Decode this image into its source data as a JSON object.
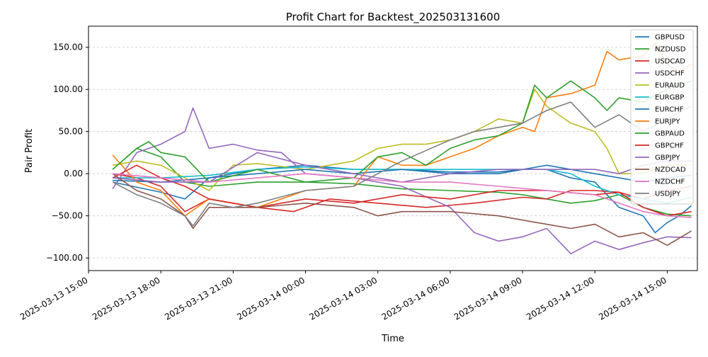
{
  "chart_data": {
    "type": "line",
    "title": "Profit Chart for Backtest_202503131600",
    "xlabel": "Time",
    "ylabel": "Pair Profit",
    "xlim": [
      "2025-03-13 15:00",
      "2025-03-14 16:15"
    ],
    "ylim": [
      -115,
      175
    ],
    "x_ticks": [
      "2025-03-13 15:00",
      "2025-03-13 18:00",
      "2025-03-13 21:00",
      "2025-03-14 00:00",
      "2025-03-14 03:00",
      "2025-03-14 06:00",
      "2025-03-14 09:00",
      "2025-03-14 12:00",
      "2025-03-14 15:00"
    ],
    "x_tick_labels": [
      "2025-03-13 15:00",
      "2025-03-13 18:00",
      "2025-03-13 21:00",
      "2025-03-14 00:00",
      "2025-03-14 03:00",
      "2025-03-14 06:00",
      "2025-03-14 09:00",
      "2025-03-14 12:00",
      "2025-03-14 15:00"
    ],
    "y_ticks": [
      -100,
      -50,
      0,
      50,
      100,
      150
    ],
    "y_tick_labels": [
      "−100.00",
      "−50.00",
      "0.00",
      "50.00",
      "100.00",
      "150.00"
    ],
    "grid": "horizontal dashed",
    "legend_position": "top-right",
    "series": [
      {
        "name": "GBPUSD",
        "color": "#1f77b4",
        "x": [
          "2025-03-13 16:00",
          "2025-03-13 18:00",
          "2025-03-13 19:00",
          "2025-03-13 20:00",
          "2025-03-13 22:00",
          "2025-03-14 00:00",
          "2025-03-14 02:00",
          "2025-03-14 04:00",
          "2025-03-14 06:00",
          "2025-03-14 08:00",
          "2025-03-14 09:00",
          "2025-03-14 10:00",
          "2025-03-14 11:00",
          "2025-03-14 12:00",
          "2025-03-14 13:00",
          "2025-03-14 14:00",
          "2025-03-14 14:30",
          "2025-03-14 15:00",
          "2025-03-14 15:30",
          "2025-03-14 16:00"
        ],
        "y": [
          -10,
          -22,
          -30,
          -5,
          5,
          10,
          5,
          5,
          2,
          2,
          5,
          5,
          -5,
          -10,
          -40,
          -50,
          -70,
          -58,
          -50,
          -38
        ]
      },
      {
        "name": "NZDUSD",
        "color": "#2ca02c",
        "x": [
          "2025-03-13 16:00",
          "2025-03-13 17:00",
          "2025-03-13 18:00",
          "2025-03-13 19:00",
          "2025-03-13 20:00",
          "2025-03-13 22:00",
          "2025-03-14 00:00",
          "2025-03-14 02:00",
          "2025-03-14 04:00",
          "2025-03-14 06:00",
          "2025-03-14 08:00",
          "2025-03-14 09:00",
          "2025-03-14 10:00",
          "2025-03-14 11:00",
          "2025-03-14 12:00",
          "2025-03-14 13:00",
          "2025-03-14 14:00",
          "2025-03-14 15:00",
          "2025-03-14 16:00"
        ],
        "y": [
          5,
          30,
          20,
          -10,
          -15,
          -10,
          -10,
          -12,
          -18,
          -20,
          -22,
          -25,
          -30,
          -35,
          -32,
          -25,
          -40,
          -48,
          -50
        ]
      },
      {
        "name": "USDCAD",
        "color": "#d62728",
        "x": [
          "2025-03-13 16:00",
          "2025-03-13 17:00",
          "2025-03-13 18:00",
          "2025-03-13 19:00",
          "2025-03-13 20:00",
          "2025-03-13 22:00",
          "2025-03-13 23:30",
          "2025-03-14 01:00",
          "2025-03-14 03:00",
          "2025-03-14 05:00",
          "2025-03-14 07:00",
          "2025-03-14 09:00",
          "2025-03-14 10:00",
          "2025-03-14 11:00",
          "2025-03-14 12:00",
          "2025-03-14 13:00",
          "2025-03-14 14:00",
          "2025-03-14 15:00",
          "2025-03-14 16:00"
        ],
        "y": [
          0,
          -5,
          -15,
          -45,
          -30,
          -40,
          -45,
          -30,
          -35,
          -40,
          -35,
          -28,
          -30,
          -20,
          -20,
          -22,
          -30,
          -20,
          -15
        ]
      },
      {
        "name": "USDCHF",
        "color": "#9467bd",
        "x": [
          "2025-03-13 16:00",
          "2025-03-13 17:00",
          "2025-03-13 18:00",
          "2025-03-13 19:00",
          "2025-03-13 19:20",
          "2025-03-13 20:00",
          "2025-03-13 21:00",
          "2025-03-13 22:00",
          "2025-03-13 23:00",
          "2025-03-14 00:00",
          "2025-03-14 02:00",
          "2025-03-14 04:00",
          "2025-03-14 06:00",
          "2025-03-14 07:00",
          "2025-03-14 08:00",
          "2025-03-14 09:00",
          "2025-03-14 10:00",
          "2025-03-14 11:00",
          "2025-03-14 12:00",
          "2025-03-14 13:00",
          "2025-03-14 14:00",
          "2025-03-14 15:00",
          "2025-03-14 16:00"
        ],
        "y": [
          -18,
          25,
          35,
          50,
          78,
          30,
          35,
          28,
          25,
          0,
          -5,
          -15,
          -40,
          -70,
          -80,
          -75,
          -65,
          -95,
          -80,
          -90,
          -82,
          -75,
          -76
        ]
      },
      {
        "name": "EURAUD",
        "color": "#bcbd22",
        "x": [
          "2025-03-13 16:00",
          "2025-03-13 17:00",
          "2025-03-13 18:00",
          "2025-03-13 19:00",
          "2025-03-13 20:00",
          "2025-03-13 21:00",
          "2025-03-13 22:00",
          "2025-03-14 00:00",
          "2025-03-14 02:00",
          "2025-03-14 03:00",
          "2025-03-14 04:00",
          "2025-03-14 05:00",
          "2025-03-14 06:00",
          "2025-03-14 07:00",
          "2025-03-14 08:00",
          "2025-03-14 09:00",
          "2025-03-14 09:30",
          "2025-03-14 10:00",
          "2025-03-14 11:00",
          "2025-03-14 12:00",
          "2025-03-14 12:30",
          "2025-03-14 13:00",
          "2025-03-14 14:00",
          "2025-03-14 15:00",
          "2025-03-14 16:00"
        ],
        "y": [
          10,
          15,
          10,
          -5,
          -20,
          10,
          12,
          5,
          15,
          30,
          35,
          35,
          40,
          50,
          65,
          60,
          100,
          80,
          60,
          50,
          30,
          0,
          0,
          10,
          10
        ]
      },
      {
        "name": "EURGBP",
        "color": "#17becf",
        "x": [
          "2025-03-13 16:00",
          "2025-03-13 18:00",
          "2025-03-13 20:00",
          "2025-03-13 22:00",
          "2025-03-14 00:00",
          "2025-03-14 02:00",
          "2025-03-14 04:00",
          "2025-03-14 06:00",
          "2025-03-14 08:00",
          "2025-03-14 10:00",
          "2025-03-14 11:00",
          "2025-03-14 12:00",
          "2025-03-14 13:00",
          "2025-03-14 14:00",
          "2025-03-14 15:00",
          "2025-03-14 16:00"
        ],
        "y": [
          -5,
          -5,
          -2,
          5,
          8,
          5,
          5,
          5,
          5,
          5,
          0,
          -15,
          -25,
          -30,
          -35,
          -28
        ]
      },
      {
        "name": "EURCHF",
        "color": "#1f77b4",
        "x": [
          "2025-03-13 16:00",
          "2025-03-13 18:00",
          "2025-03-13 20:00",
          "2025-03-13 22:00",
          "2025-03-14 00:00",
          "2025-03-14 02:00",
          "2025-03-14 04:00",
          "2025-03-14 06:00",
          "2025-03-14 08:00",
          "2025-03-14 10:00",
          "2025-03-14 11:00",
          "2025-03-14 12:00",
          "2025-03-14 13:00",
          "2025-03-14 14:00",
          "2025-03-14 15:00",
          "2025-03-14 16:00"
        ],
        "y": [
          -8,
          -10,
          -5,
          0,
          5,
          0,
          5,
          0,
          0,
          10,
          5,
          0,
          -5,
          -10,
          -5,
          -2
        ]
      },
      {
        "name": "EURJPY",
        "color": "#ff7f0e",
        "x": [
          "2025-03-13 16:00",
          "2025-03-13 17:00",
          "2025-03-13 18:00",
          "2025-03-13 19:00",
          "2025-03-13 20:00",
          "2025-03-13 21:00",
          "2025-03-13 22:00",
          "2025-03-14 00:00",
          "2025-03-14 02:00",
          "2025-03-14 03:00",
          "2025-03-14 04:00",
          "2025-03-14 05:00",
          "2025-03-14 06:00",
          "2025-03-14 07:00",
          "2025-03-14 08:00",
          "2025-03-14 09:00",
          "2025-03-14 09:30",
          "2025-03-14 10:00",
          "2025-03-14 11:00",
          "2025-03-14 12:00",
          "2025-03-14 12:30",
          "2025-03-14 13:00",
          "2025-03-14 14:00",
          "2025-03-14 14:30",
          "2025-03-14 15:00",
          "2025-03-14 15:30",
          "2025-03-14 16:00"
        ],
        "y": [
          22,
          -10,
          -20,
          -50,
          -30,
          -35,
          -40,
          -20,
          -15,
          20,
          10,
          10,
          20,
          30,
          45,
          55,
          50,
          90,
          95,
          105,
          145,
          135,
          140,
          155,
          130,
          120,
          130
        ]
      },
      {
        "name": "GBPAUD",
        "color": "#2ca02c",
        "x": [
          "2025-03-13 16:00",
          "2025-03-13 17:00",
          "2025-03-13 17:30",
          "2025-03-13 18:00",
          "2025-03-13 19:00",
          "2025-03-13 20:00",
          "2025-03-13 22:00",
          "2025-03-14 00:00",
          "2025-03-14 02:00",
          "2025-03-14 03:00",
          "2025-03-14 04:00",
          "2025-03-14 05:00",
          "2025-03-14 06:00",
          "2025-03-14 07:00",
          "2025-03-14 08:00",
          "2025-03-14 09:00",
          "2025-03-14 09:30",
          "2025-03-14 10:00",
          "2025-03-14 11:00",
          "2025-03-14 12:00",
          "2025-03-14 12:30",
          "2025-03-14 13:00",
          "2025-03-14 14:00",
          "2025-03-14 15:00",
          "2025-03-14 16:00"
        ],
        "y": [
          5,
          30,
          38,
          25,
          20,
          -10,
          5,
          -10,
          -5,
          20,
          25,
          10,
          30,
          40,
          45,
          60,
          105,
          90,
          110,
          90,
          75,
          90,
          85,
          100,
          110
        ]
      },
      {
        "name": "GBPCHF",
        "color": "#d62728",
        "x": [
          "2025-03-13 16:00",
          "2025-03-13 17:00",
          "2025-03-13 18:00",
          "2025-03-13 19:00",
          "2025-03-13 20:00",
          "2025-03-13 22:00",
          "2025-03-14 00:00",
          "2025-03-14 02:00",
          "2025-03-14 04:00",
          "2025-03-14 06:00",
          "2025-03-14 08:00",
          "2025-03-14 10:00",
          "2025-03-14 12:00",
          "2025-03-14 13:00",
          "2025-03-14 14:00",
          "2025-03-14 15:00",
          "2025-03-14 16:00"
        ],
        "y": [
          -5,
          10,
          -5,
          -15,
          -30,
          -40,
          -30,
          -35,
          -25,
          -30,
          -20,
          -20,
          -25,
          -22,
          -40,
          -50,
          -45
        ]
      },
      {
        "name": "GBPJPY",
        "color": "#9467bd",
        "x": [
          "2025-03-13 16:00",
          "2025-03-13 18:00",
          "2025-03-13 20:00",
          "2025-03-13 22:00",
          "2025-03-14 00:00",
          "2025-03-14 02:00",
          "2025-03-14 04:00",
          "2025-03-14 06:00",
          "2025-03-14 08:00",
          "2025-03-14 10:00",
          "2025-03-14 12:00",
          "2025-03-14 13:00",
          "2025-03-14 14:00",
          "2025-03-14 15:00",
          "2025-03-14 16:00"
        ],
        "y": [
          -5,
          -10,
          -10,
          25,
          10,
          0,
          -10,
          0,
          5,
          5,
          5,
          0,
          10,
          15,
          15
        ]
      },
      {
        "name": "NZDCAD",
        "color": "#8c564b",
        "x": [
          "2025-03-13 16:00",
          "2025-03-13 17:00",
          "2025-03-13 18:00",
          "2025-03-13 19:00",
          "2025-03-13 19:20",
          "2025-03-13 20:00",
          "2025-03-13 22:00",
          "2025-03-14 00:00",
          "2025-03-14 02:00",
          "2025-03-14 03:00",
          "2025-03-14 04:00",
          "2025-03-14 06:00",
          "2025-03-14 08:00",
          "2025-03-14 10:00",
          "2025-03-14 11:00",
          "2025-03-14 12:00",
          "2025-03-14 13:00",
          "2025-03-14 14:00",
          "2025-03-14 15:00",
          "2025-03-14 16:00"
        ],
        "y": [
          0,
          -20,
          -30,
          -50,
          -65,
          -40,
          -40,
          -35,
          -40,
          -50,
          -45,
          -45,
          -50,
          -60,
          -65,
          -60,
          -75,
          -70,
          -85,
          -68
        ]
      },
      {
        "name": "NZDCHF",
        "color": "#e377c2",
        "x": [
          "2025-03-13 16:00",
          "2025-03-13 18:00",
          "2025-03-13 20:00",
          "2025-03-13 22:00",
          "2025-03-14 00:00",
          "2025-03-14 02:00",
          "2025-03-14 04:00",
          "2025-03-14 06:00",
          "2025-03-14 08:00",
          "2025-03-14 10:00",
          "2025-03-14 12:00",
          "2025-03-14 13:00",
          "2025-03-14 14:00",
          "2025-03-14 15:00",
          "2025-03-14 16:00"
        ],
        "y": [
          0,
          -5,
          -10,
          -5,
          0,
          -5,
          -10,
          -10,
          -15,
          -20,
          -25,
          -35,
          -45,
          -50,
          -52
        ]
      },
      {
        "name": "USDJPY",
        "color": "#7f7f7f",
        "x": [
          "2025-03-13 16:00",
          "2025-03-13 17:00",
          "2025-03-13 18:00",
          "2025-03-13 19:00",
          "2025-03-13 19:20",
          "2025-03-13 20:00",
          "2025-03-13 21:00",
          "2025-03-13 22:00",
          "2025-03-14 00:00",
          "2025-03-14 02:00",
          "2025-03-14 04:00",
          "2025-03-14 06:00",
          "2025-03-14 07:00",
          "2025-03-14 08:00",
          "2025-03-14 09:00",
          "2025-03-14 10:00",
          "2025-03-14 11:00",
          "2025-03-14 12:00",
          "2025-03-14 13:00",
          "2025-03-14 14:00",
          "2025-03-14 15:00",
          "2025-03-14 16:00"
        ],
        "y": [
          -10,
          -25,
          -35,
          -50,
          -62,
          -35,
          -40,
          -35,
          -20,
          -15,
          15,
          40,
          50,
          55,
          60,
          75,
          85,
          55,
          70,
          50,
          65,
          80
        ]
      }
    ]
  }
}
